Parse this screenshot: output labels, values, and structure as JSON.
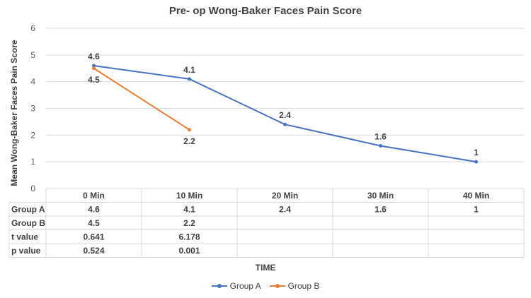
{
  "chart_data": {
    "type": "line",
    "title": "Pre- op Wong-Baker Faces Pain Score",
    "xlabel": "TIME",
    "ylabel": "Mean Wong-Baker Faces Pain Score",
    "ylim": [
      0,
      6
    ],
    "yticks": [
      "0",
      "1",
      "2",
      "3",
      "4",
      "5",
      "6"
    ],
    "categories": [
      "0 Min",
      "10 Min",
      "20 Min",
      "30 Min",
      "40 Min"
    ],
    "series": [
      {
        "name": "Group A",
        "color": "#4472c4",
        "values": [
          4.6,
          4.1,
          2.4,
          1.6,
          1
        ]
      },
      {
        "name": "Group B",
        "color": "#ed7d31",
        "values": [
          4.5,
          2.2,
          null,
          null,
          null
        ]
      }
    ],
    "grid": true,
    "legend": "bottom",
    "table": {
      "rows": [
        {
          "label": "Group A",
          "cells": [
            "4.6",
            "4.1",
            "2.4",
            "1.6",
            "1"
          ]
        },
        {
          "label": "Group B",
          "cells": [
            "4.5",
            "2.2",
            "",
            "",
            ""
          ]
        },
        {
          "label": "t value",
          "cells": [
            "0.641",
            "6.178",
            "",
            "",
            ""
          ]
        },
        {
          "label": "p value",
          "cells": [
            "0.524",
            "0.001",
            "",
            "",
            ""
          ]
        }
      ]
    }
  }
}
